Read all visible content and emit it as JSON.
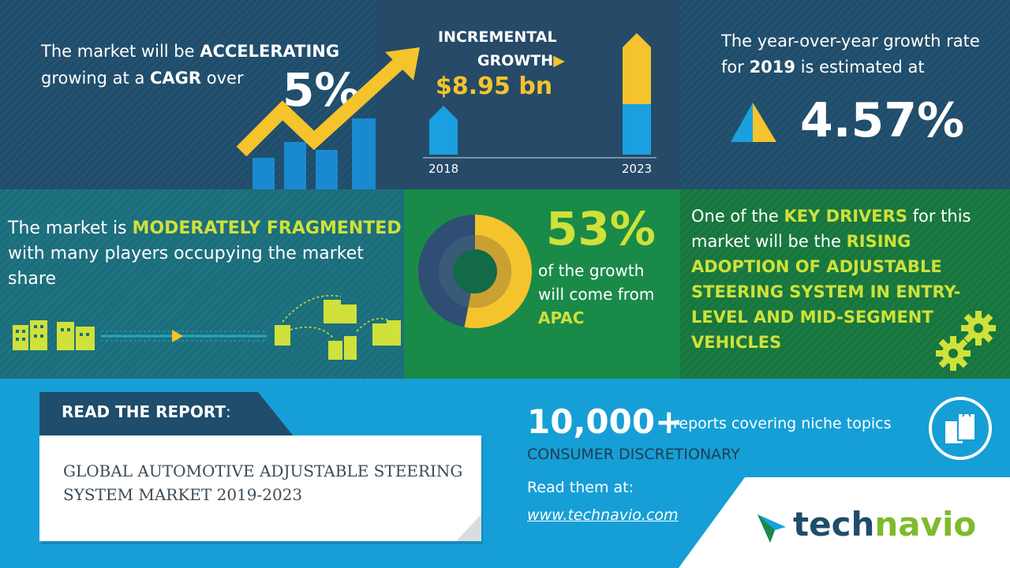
{
  "cagr": {
    "line1_pre": "The market will be ",
    "line1_em": "ACCELERATING",
    "line2_pre": "growing at a ",
    "line2_em": "CAGR",
    "line2_post": " over",
    "value": "5%"
  },
  "incremental": {
    "label_line1": "INCREMENTAL",
    "label_line2": "GROWTH",
    "value": "$8.95 bn",
    "year_start": "2018",
    "year_end": "2023"
  },
  "yoy": {
    "line1": "The year-over-year growth rate",
    "line2_pre": "for ",
    "line2_em": "2019",
    "line2_post": " is estimated at",
    "value": "4.57%"
  },
  "fragmentation": {
    "pre": "The market is ",
    "em": "MODERATELY FRAGMENTED",
    "post": " with many players occupying the market share"
  },
  "region": {
    "value": "53%",
    "text": "of the growth will come from",
    "region": "APAC",
    "share": 0.53
  },
  "drivers": {
    "pre": "One of the ",
    "em1": "KEY DRIVERS",
    "mid": " for this market will be the ",
    "em2": "RISING ADOPTION OF ADJUSTABLE STEERING SYSTEM IN ENTRY-LEVEL AND MID-SEGMENT VEHICLES"
  },
  "report": {
    "tab_label": "READ THE REPORT",
    "tab_colon": ":",
    "title": "GLOBAL AUTOMOTIVE ADJUSTABLE STEERING SYSTEM MARKET 2019-2023"
  },
  "promo": {
    "count": "10,000+",
    "count_text": "reports covering niche topics",
    "category": "CONSUMER DISCRETIONARY",
    "read_at": "Read them at:",
    "url": "www.technavio.com"
  },
  "brand": {
    "part1": "tech",
    "part2": "navio"
  },
  "colors": {
    "yellow": "#f5c32c",
    "lime": "#cfe13a",
    "blue": "#169fd6",
    "navy": "#1f4d6b",
    "green": "#1a8a49"
  }
}
